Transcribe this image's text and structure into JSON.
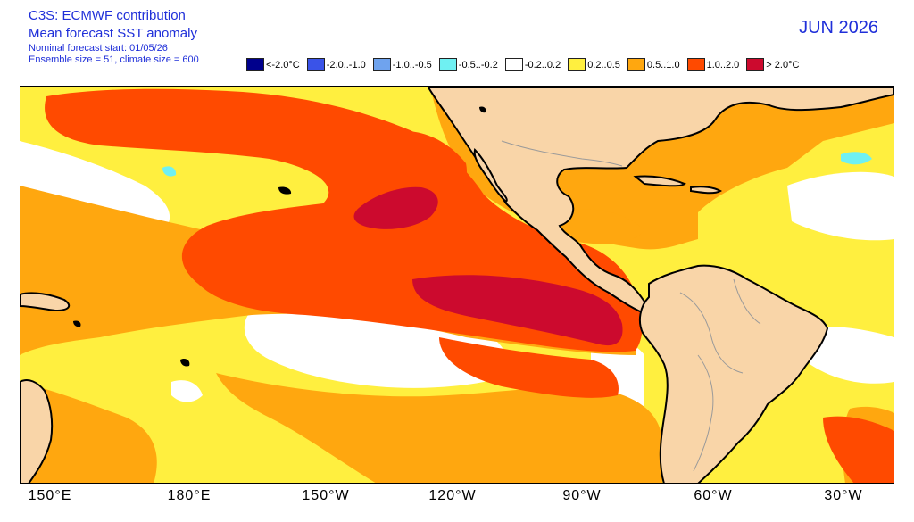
{
  "header": {
    "line1": "C3S: ECMWF contribution",
    "line2": "Mean forecast SST anomaly",
    "line3": "Nominal forecast start: 01/05/26",
    "line4": "Ensemble size = 51, climate size = 600",
    "month": "JUN 2026"
  },
  "legend": [
    {
      "label": "<-2.0°C",
      "color": "#00008c"
    },
    {
      "label": "-2.0..-1.0",
      "color": "#3a53e8"
    },
    {
      "label": "-1.0..-0.5",
      "color": "#6fa3ee"
    },
    {
      "label": "-0.5..-0.2",
      "color": "#6ff0f2"
    },
    {
      "label": "-0.2..0.2",
      "color": "#ffffff"
    },
    {
      "label": "0.2..0.5",
      "color": "#ffef3f"
    },
    {
      "label": "0.5..1.0",
      "color": "#ffa70f"
    },
    {
      "label": "1.0..2.0",
      "color": "#ff4a00"
    },
    {
      "label": "> 2.0°C",
      "color": "#cc0a2e"
    }
  ],
  "colors": {
    "land": "#f9d5a8",
    "coast": "#000000",
    "border": "#9a9a9a"
  },
  "axis": {
    "ticks": [
      "150°E",
      "180°E",
      "150°W",
      "120°W",
      "90°W",
      "60°W",
      "30°W"
    ]
  }
}
